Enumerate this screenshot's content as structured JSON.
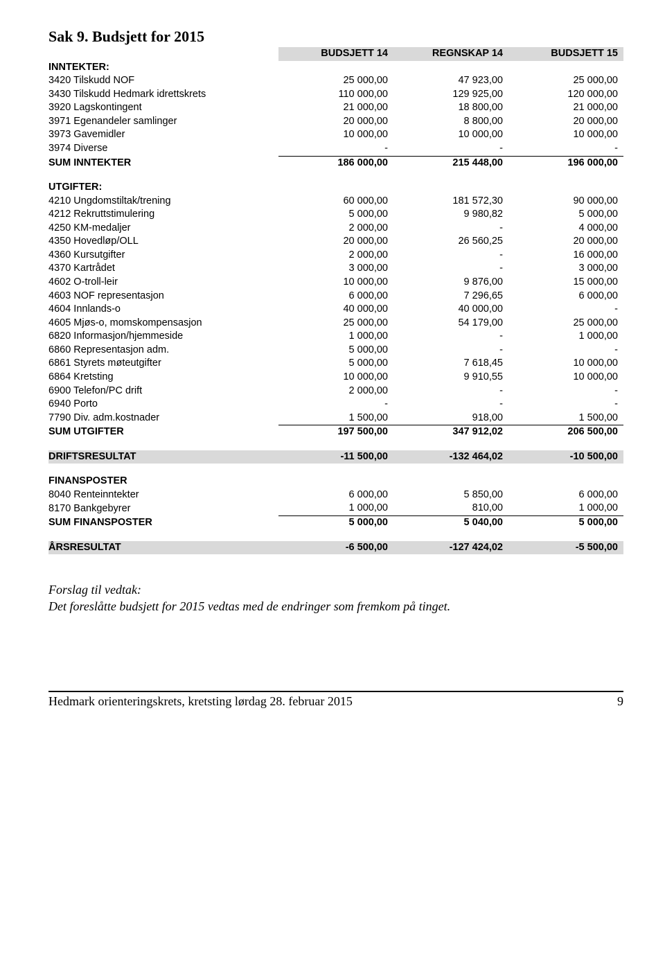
{
  "page": {
    "title": "Sak 9. Budsjett for 2015",
    "col_headers": [
      "BUDSJETT 14",
      "REGNSKAP 14",
      "BUDSJETT 15"
    ]
  },
  "sections": {
    "inntekter_hdr": "INNTEKTER:",
    "utgifter_hdr": "UTGIFTER:",
    "finansposter_hdr": "FINANSPOSTER"
  },
  "inntekter": [
    {
      "label": "3420 Tilskudd NOF",
      "c1": "25 000,00",
      "c2": "47 923,00",
      "c3": "25 000,00"
    },
    {
      "label": "3430 Tilskudd Hedmark idrettskrets",
      "c1": "110 000,00",
      "c2": "129 925,00",
      "c3": "120 000,00"
    },
    {
      "label": "3920 Lagskontingent",
      "c1": "21 000,00",
      "c2": "18 800,00",
      "c3": "21 000,00"
    },
    {
      "label": "3971 Egenandeler samlinger",
      "c1": "20 000,00",
      "c2": "8 800,00",
      "c3": "20 000,00"
    },
    {
      "label": "3973 Gavemidler",
      "c1": "10 000,00",
      "c2": "10 000,00",
      "c3": "10 000,00"
    },
    {
      "label": "3974 Diverse",
      "c1": "-",
      "c2": "-",
      "c3": "-"
    }
  ],
  "sum_inntekter": {
    "label": "SUM INNTEKTER",
    "c1": "186 000,00",
    "c2": "215 448,00",
    "c3": "196 000,00"
  },
  "utgifter": [
    {
      "label": "4210 Ungdomstiltak/trening",
      "c1": "60 000,00",
      "c2": "181 572,30",
      "c3": "90 000,00"
    },
    {
      "label": "4212 Rekruttstimulering",
      "c1": "5 000,00",
      "c2": "9 980,82",
      "c3": "5 000,00"
    },
    {
      "label": "4250 KM-medaljer",
      "c1": "2 000,00",
      "c2": "-",
      "c3": "4 000,00"
    },
    {
      "label": "4350 Hovedløp/OLL",
      "c1": "20 000,00",
      "c2": "26 560,25",
      "c3": "20 000,00"
    },
    {
      "label": "4360 Kursutgifter",
      "c1": "2 000,00",
      "c2": "-",
      "c3": "16 000,00"
    },
    {
      "label": "4370 Kartrådet",
      "c1": "3 000,00",
      "c2": "-",
      "c3": "3 000,00"
    },
    {
      "label": "4602 O-troll-leir",
      "c1": "10 000,00",
      "c2": "9 876,00",
      "c3": "15 000,00"
    },
    {
      "label": "4603 NOF representasjon",
      "c1": "6 000,00",
      "c2": "7 296,65",
      "c3": "6 000,00"
    },
    {
      "label": "4604 Innlands-o",
      "c1": "40 000,00",
      "c2": "40 000,00",
      "c3": "-"
    },
    {
      "label": "4605 Mjøs-o, momskompensasjon",
      "c1": "25 000,00",
      "c2": "54 179,00",
      "c3": "25 000,00"
    },
    {
      "label": "6820 Informasjon/hjemmeside",
      "c1": "1 000,00",
      "c2": "-",
      "c3": "1 000,00"
    },
    {
      "label": "6860 Representasjon adm.",
      "c1": "5 000,00",
      "c2": "-",
      "c3": "-"
    },
    {
      "label": "6861 Styrets møteutgifter",
      "c1": "5 000,00",
      "c2": "7 618,45",
      "c3": "10 000,00"
    },
    {
      "label": "6864 Kretsting",
      "c1": "10 000,00",
      "c2": "9 910,55",
      "c3": "10 000,00"
    },
    {
      "label": "6900 Telefon/PC drift",
      "c1": "2 000,00",
      "c2": "-",
      "c3": "-"
    },
    {
      "label": "6940 Porto",
      "c1": "-",
      "c2": "-",
      "c3": "-"
    },
    {
      "label": "7790 Div. adm.kostnader",
      "c1": "1 500,00",
      "c2": "918,00",
      "c3": "1 500,00"
    }
  ],
  "sum_utgifter": {
    "label": "SUM UTGIFTER",
    "c1": "197 500,00",
    "c2": "347 912,02",
    "c3": "206 500,00"
  },
  "driftsresultat": {
    "label": "DRIFTSRESULTAT",
    "c1": "-11 500,00",
    "c2": "-132 464,02",
    "c3": "-10 500,00"
  },
  "finansposter": [
    {
      "label": "8040 Renteinntekter",
      "c1": "6 000,00",
      "c2": "5 850,00",
      "c3": "6 000,00"
    },
    {
      "label": "8170 Bankgebyrer",
      "c1": "1 000,00",
      "c2": "810,00",
      "c3": "1 000,00"
    }
  ],
  "sum_finansposter": {
    "label": "SUM FINANSPOSTER",
    "c1": "5 000,00",
    "c2": "5 040,00",
    "c3": "5 000,00"
  },
  "aarsresultat": {
    "label": "ÅRSRESULTAT",
    "c1": "-6 500,00",
    "c2": "-127 424,02",
    "c3": "-5 500,00"
  },
  "forslag": {
    "line1": "Forslag til vedtak:",
    "line2": "Det foreslåtte budsjett for 2015 vedtas med de endringer som fremkom på tinget."
  },
  "footer": {
    "left": "Hedmark orienteringskrets, kretsting lørdag 28. februar 2015",
    "page": "9"
  },
  "colors": {
    "shade": "#d9d9d9",
    "text": "#000000",
    "bg": "#ffffff"
  }
}
